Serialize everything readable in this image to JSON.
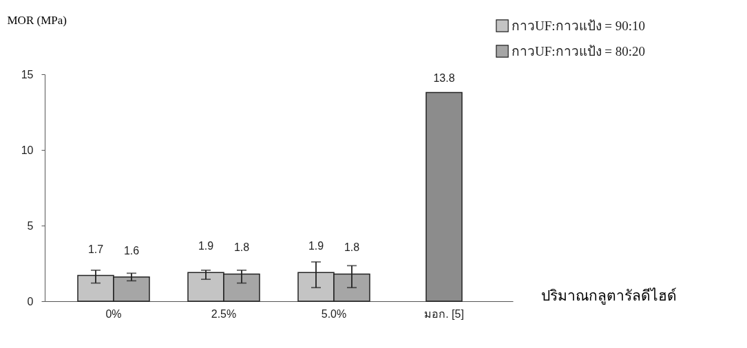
{
  "chart_data": {
    "type": "bar",
    "ylabel": "MOR (MPa)",
    "xlabel": "ปริมาณกลูตารัลดีไฮด์",
    "categories": [
      "0%",
      "2.5%",
      "5.0%",
      "มอก. [5]"
    ],
    "series": [
      {
        "name": "กาวUF:กาวแป้ง = 90:10",
        "color": "#c4c4c4",
        "values": [
          1.7,
          1.9,
          1.9,
          null
        ],
        "errors": [
          [
            1.2,
            2.05
          ],
          [
            1.45,
            2.05
          ],
          [
            0.9,
            2.6
          ],
          null
        ]
      },
      {
        "name": "กาวUF:กาวแป้ง = 80:20",
        "color": "#a6a6a6",
        "values": [
          1.6,
          1.8,
          1.8,
          null
        ],
        "errors": [
          [
            1.35,
            1.85
          ],
          [
            1.2,
            2.05
          ],
          [
            0.9,
            2.35
          ],
          null
        ]
      },
      {
        "color": "#8c8c8c",
        "values": [
          null,
          null,
          null,
          13.8
        ]
      }
    ],
    "ylim": [
      0,
      15
    ],
    "yticks": [
      0,
      5,
      10,
      15
    ],
    "grid": false,
    "legend": "top right",
    "data_labels": true
  }
}
